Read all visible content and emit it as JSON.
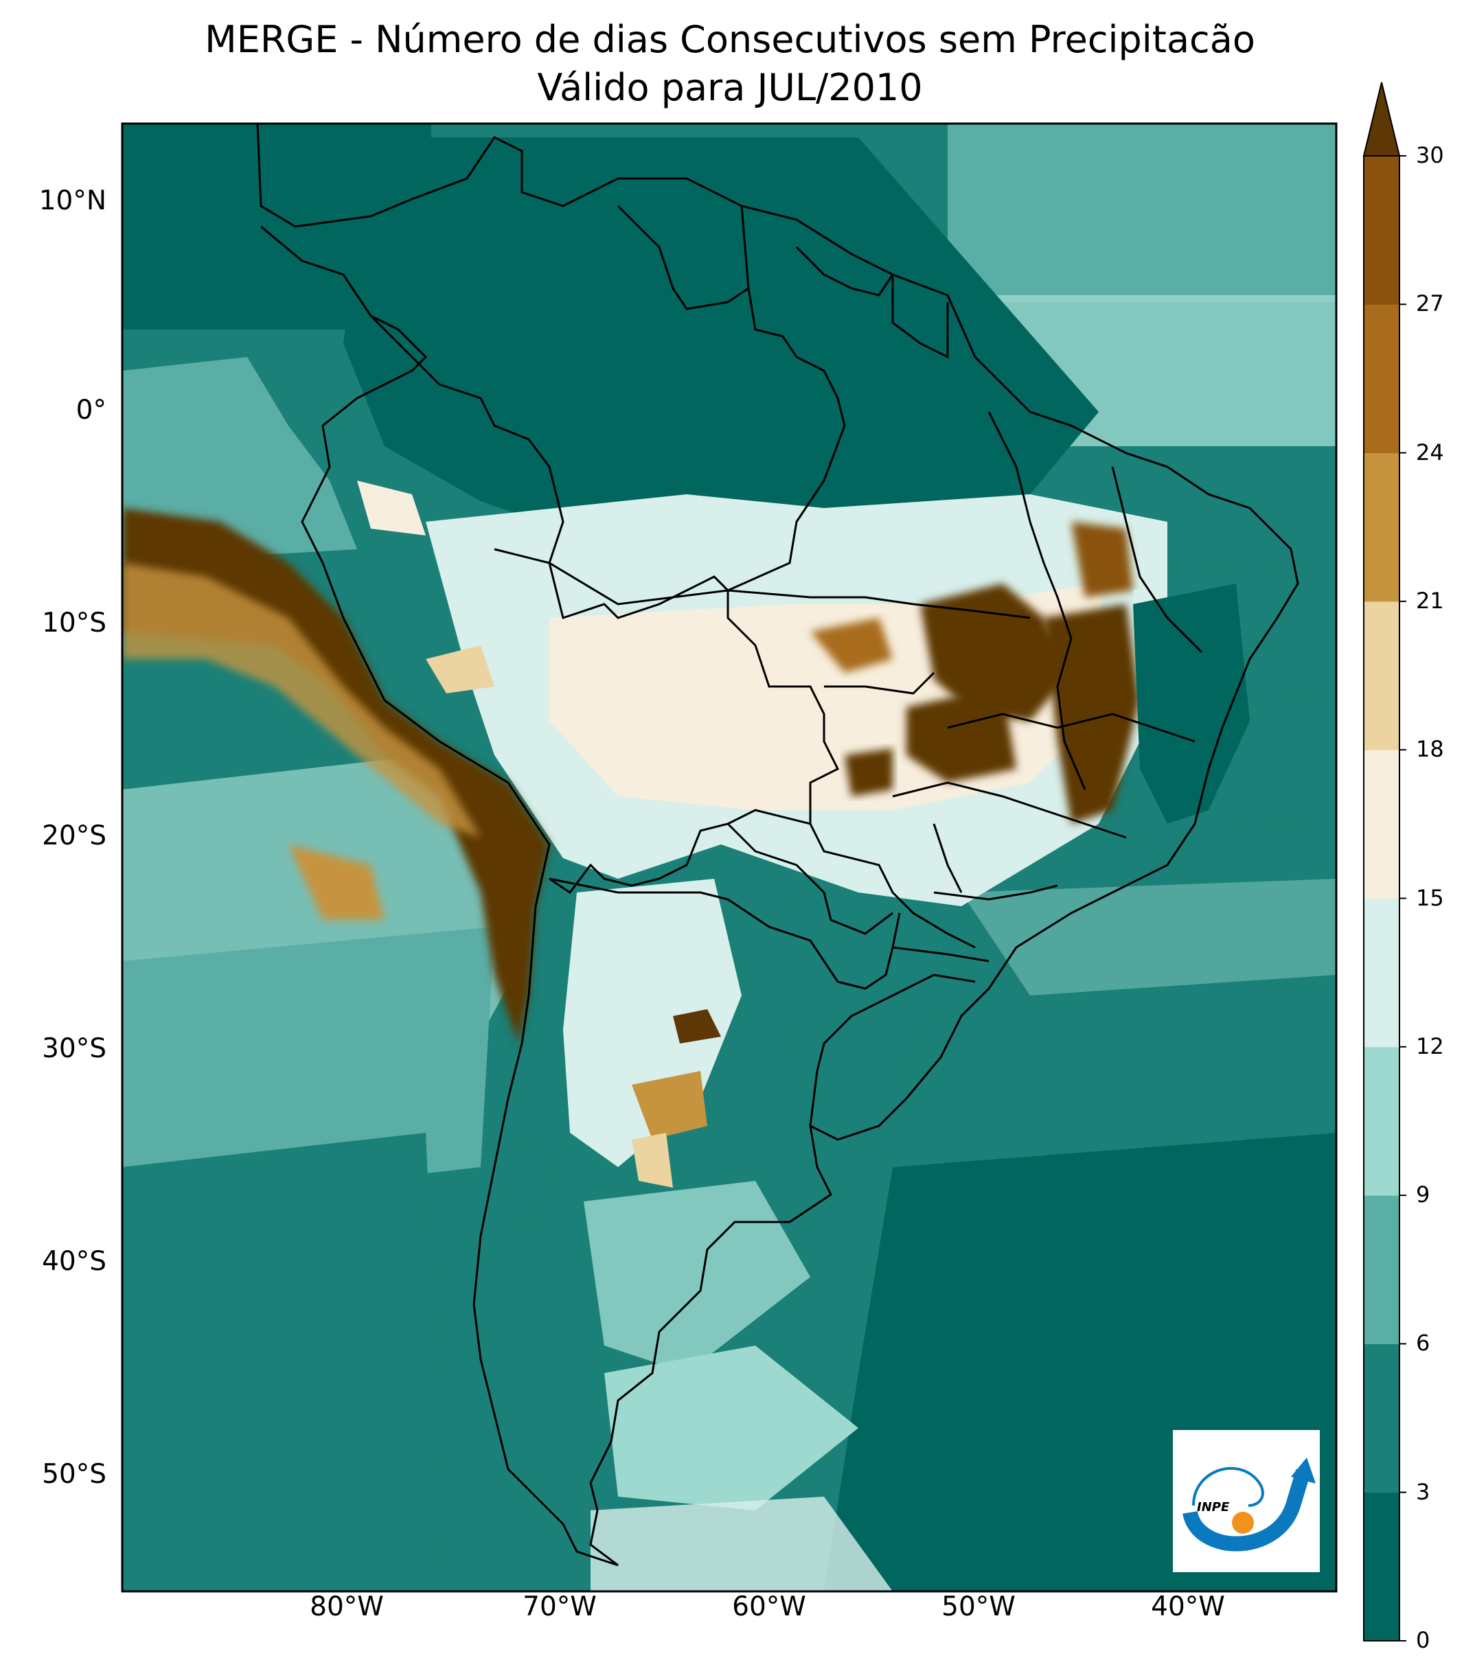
{
  "title": {
    "line1": "MERGE - Número de dias Consecutivos sem Precipitacão",
    "line2": "Válido para JUL/2010"
  },
  "map": {
    "lat_ticks": [
      "10°N",
      "0°",
      "10°S",
      "20°S",
      "30°S",
      "40°S",
      "50°S"
    ],
    "lon_ticks": [
      "80°W",
      "70°W",
      "60°W",
      "50°W",
      "40°W"
    ]
  },
  "colorbar": {
    "ticks": [
      "0",
      "3",
      "6",
      "9",
      "12",
      "15",
      "18",
      "21",
      "24",
      "27",
      "30"
    ],
    "colors": [
      "#01665e",
      "#1b8077",
      "#5aaea5",
      "#9ed9d0",
      "#d8efeb",
      "#f7eedd",
      "#ebd49f",
      "#c6943f",
      "#a86c1c",
      "#8a520d",
      "#5d3706"
    ],
    "extend": "max"
  },
  "logo": {
    "text": "INPE",
    "colors": {
      "arc": "#0b79bf",
      "sun": "#f0921d"
    }
  },
  "colors": {
    "ocean": "#1b8077",
    "dry": "#5d3706",
    "wet": "#01665e"
  }
}
